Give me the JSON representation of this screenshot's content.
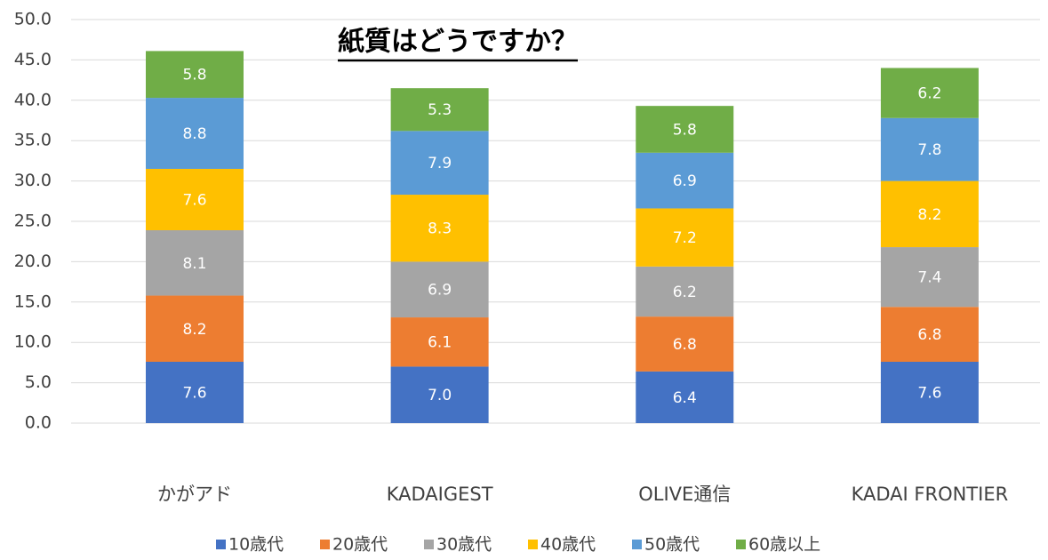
{
  "chart_data": {
    "type": "stacked_bar",
    "title": "紙質はどうですか？",
    "categories": [
      "かがアド",
      "KADAIGEST",
      "OLIVE通信",
      "KADAI FRONTIER"
    ],
    "series": [
      {
        "name": "10歳代",
        "color": "#4472c4",
        "values": [
          7.6,
          7.0,
          6.4,
          7.6
        ],
        "value_labels": [
          "7.6",
          "7.0",
          "6.4",
          "7.6"
        ]
      },
      {
        "name": "20歳代",
        "color": "#ed7d31",
        "values": [
          8.2,
          6.1,
          6.8,
          6.8
        ],
        "value_labels": [
          "8.2",
          "6.1",
          "6.8",
          "6.8"
        ]
      },
      {
        "name": "30歳代",
        "color": "#a5a5a5",
        "values": [
          8.1,
          6.9,
          6.2,
          7.4
        ],
        "value_labels": [
          "8.1",
          "6.9",
          "6.2",
          "7.4"
        ]
      },
      {
        "name": "40歳代",
        "color": "#ffc000",
        "values": [
          7.6,
          8.3,
          7.2,
          8.2
        ],
        "value_labels": [
          "7.6",
          "8.3",
          "7.2",
          "8.2"
        ]
      },
      {
        "name": "50歳代",
        "color": "#5b9bd5",
        "values": [
          8.8,
          7.9,
          6.9,
          7.8
        ],
        "value_labels": [
          "8.8",
          "7.9",
          "6.9",
          "7.8"
        ]
      },
      {
        "name": "60歳以上",
        "color": "#70ad47",
        "values": [
          5.8,
          5.3,
          5.8,
          6.2
        ],
        "value_labels": [
          "5.8",
          "5.3",
          "5.8",
          "6.2"
        ]
      }
    ],
    "ylim": [
      0,
      50
    ],
    "yticks": [
      {
        "value": 0,
        "label": "0.0"
      },
      {
        "value": 5,
        "label": "5.0"
      },
      {
        "value": 10,
        "label": "10.0"
      },
      {
        "value": 15,
        "label": "15.0"
      },
      {
        "value": 20,
        "label": "20.0"
      },
      {
        "value": 25,
        "label": "25.0"
      },
      {
        "value": 30,
        "label": "30.0"
      },
      {
        "value": 35,
        "label": "35.0"
      },
      {
        "value": 40,
        "label": "40.0"
      },
      {
        "value": 45,
        "label": "45.0"
      },
      {
        "value": 50,
        "label": "50.0"
      }
    ],
    "grid": true,
    "legend": "bottom"
  }
}
